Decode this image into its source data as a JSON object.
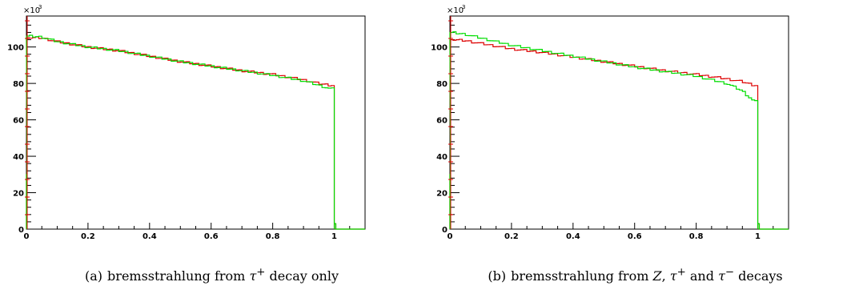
{
  "colors": {
    "series_red": "#dd0000",
    "series_green": "#00dd00",
    "frame": "#000000"
  },
  "chart_data": [
    {
      "type": "line",
      "step": true,
      "caption_label": "(a)",
      "caption_text": "bremsstrahlung from τ+ decay only",
      "caption_html": "bremsstrahlung from <i>τ</i><sup>+</sup> decay only",
      "y_exponent_base": "×10",
      "y_exponent_power": "3",
      "xlim": [
        0,
        1.1
      ],
      "ylim": [
        0,
        117
      ],
      "xticks": [
        0,
        0.2,
        0.4,
        0.6,
        0.8,
        1
      ],
      "xtick_labels": [
        "0",
        "0.2",
        "0.4",
        "0.6",
        "0.8",
        "1"
      ],
      "yticks": [
        0,
        20,
        40,
        60,
        80,
        100
      ],
      "ytick_labels": [
        "0",
        "20",
        "40",
        "60",
        "80",
        "100"
      ],
      "series": [
        {
          "color": "#dd0000",
          "x": [
            0,
            0.005,
            0.05,
            0.1,
            0.2,
            0.3,
            0.4,
            0.5,
            0.6,
            0.7,
            0.8,
            0.9,
            0.95,
            0.99
          ],
          "y": [
            30,
            105,
            105,
            103,
            100,
            98,
            95,
            92,
            89.5,
            87,
            85,
            82,
            80,
            79
          ]
        },
        {
          "color": "#00dd00",
          "x": [
            0,
            0.005,
            0.05,
            0.1,
            0.2,
            0.3,
            0.4,
            0.5,
            0.6,
            0.7,
            0.8,
            0.9,
            0.95,
            0.99
          ],
          "y": [
            30,
            106,
            105.5,
            103,
            100,
            98,
            95,
            92,
            89.5,
            87,
            84.5,
            81.5,
            79,
            77
          ]
        }
      ]
    },
    {
      "type": "line",
      "step": true,
      "caption_label": "(b)",
      "caption_text": "bremsstrahlung from Z, τ+ and τ− decays",
      "caption_html": "bremsstrahlung from <i>Z</i>, <i>τ</i><sup>+</sup> and <i>τ</i><sup>−</sup> decays",
      "y_exponent_base": "×10",
      "y_exponent_power": "3",
      "xlim": [
        0,
        1.1
      ],
      "ylim": [
        0,
        117
      ],
      "xticks": [
        0,
        0.2,
        0.4,
        0.6,
        0.8,
        1
      ],
      "xtick_labels": [
        "0",
        "0.2",
        "0.4",
        "0.6",
        "0.8",
        "1"
      ],
      "yticks": [
        0,
        20,
        40,
        60,
        80,
        100
      ],
      "ytick_labels": [
        "0",
        "20",
        "40",
        "60",
        "80",
        "100"
      ],
      "series": [
        {
          "color": "#dd0000",
          "x": [
            0,
            0.005,
            0.05,
            0.1,
            0.2,
            0.3,
            0.4,
            0.5,
            0.6,
            0.7,
            0.8,
            0.9,
            0.95,
            0.99
          ],
          "y": [
            30,
            104,
            103.5,
            102,
            99,
            97,
            94.5,
            92,
            89.5,
            87,
            85,
            82.5,
            81,
            79
          ]
        },
        {
          "color": "#00dd00",
          "x": [
            0,
            0.005,
            0.05,
            0.1,
            0.2,
            0.3,
            0.4,
            0.5,
            0.6,
            0.7,
            0.8,
            0.9,
            0.95,
            0.99
          ],
          "y": [
            30,
            108,
            107,
            105,
            101,
            98,
            95,
            92,
            89,
            86.5,
            84,
            80,
            76,
            70
          ]
        }
      ]
    }
  ]
}
